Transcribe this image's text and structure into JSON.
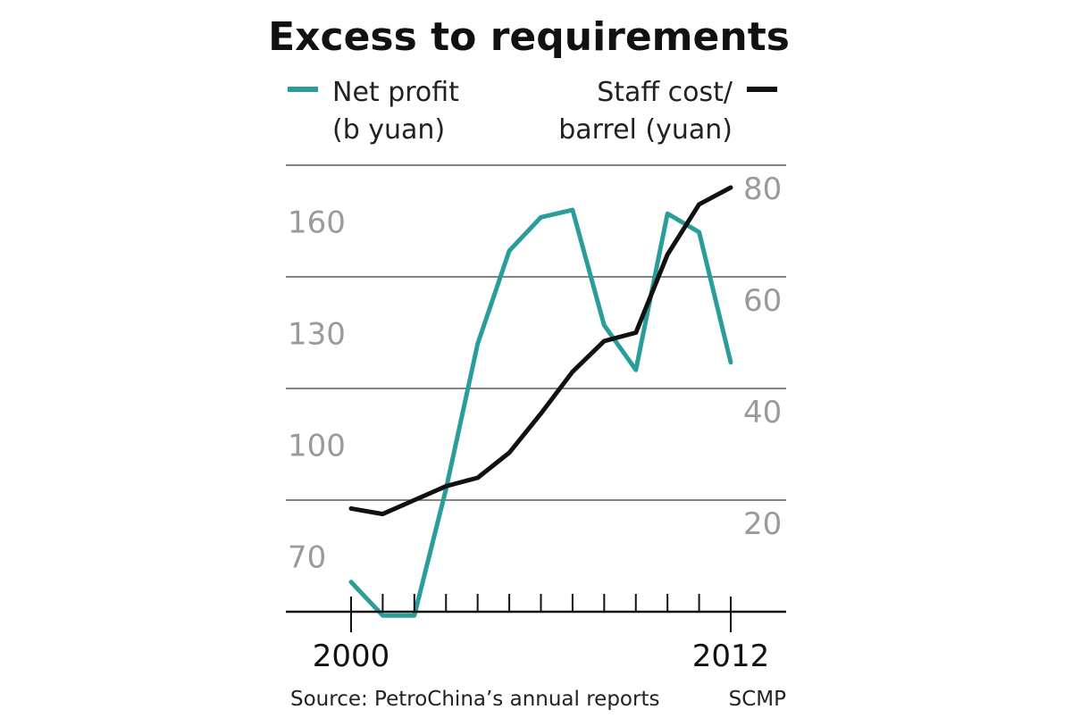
{
  "chart_data": {
    "type": "line",
    "title": "Excess to requirements",
    "source": "Source: PetroChina’s annual reports",
    "credit": "SCMP",
    "x": [
      2000,
      2001,
      2002,
      2003,
      2004,
      2005,
      2006,
      2007,
      2008,
      2009,
      2010,
      2011,
      2012
    ],
    "x_tick_labels": [
      {
        "x": 2000,
        "label": "2000"
      },
      {
        "x": 2012,
        "label": "2012"
      }
    ],
    "left_axis": {
      "label_lines": [
        "Net profit",
        "(b yuan)"
      ],
      "ylim": [
        55,
        175
      ],
      "ticks": [
        {
          "value": 160,
          "label": "160"
        },
        {
          "value": 130,
          "label": "130"
        },
        {
          "value": 100,
          "label": "100"
        },
        {
          "value": 70,
          "label": "70"
        }
      ]
    },
    "right_axis": {
      "label_lines": [
        "Staff cost/",
        "barrel (yuan)"
      ],
      "ylim": [
        4,
        84
      ],
      "ticks": [
        {
          "value": 80,
          "label": "80"
        },
        {
          "value": 60,
          "label": "60"
        },
        {
          "value": 40,
          "label": "40"
        },
        {
          "value": 20,
          "label": "20"
        }
      ]
    },
    "gridlines_right_units": [
      84,
      64,
      44,
      24
    ],
    "series": [
      {
        "name": "Net profit (b yuan)",
        "axis": "left",
        "color": "#2a9d9b",
        "values": [
          63,
          54,
          54,
          88,
          127,
          152,
          161,
          163,
          132,
          120,
          162,
          157,
          122
        ]
      },
      {
        "name": "Staff cost/barrel (yuan)",
        "axis": "right",
        "color": "#111111",
        "values": [
          22.5,
          21.5,
          24,
          26.5,
          28,
          32.5,
          39.5,
          47,
          52.5,
          54,
          68,
          77,
          80
        ]
      }
    ],
    "grid": true,
    "legend_position": "top"
  }
}
